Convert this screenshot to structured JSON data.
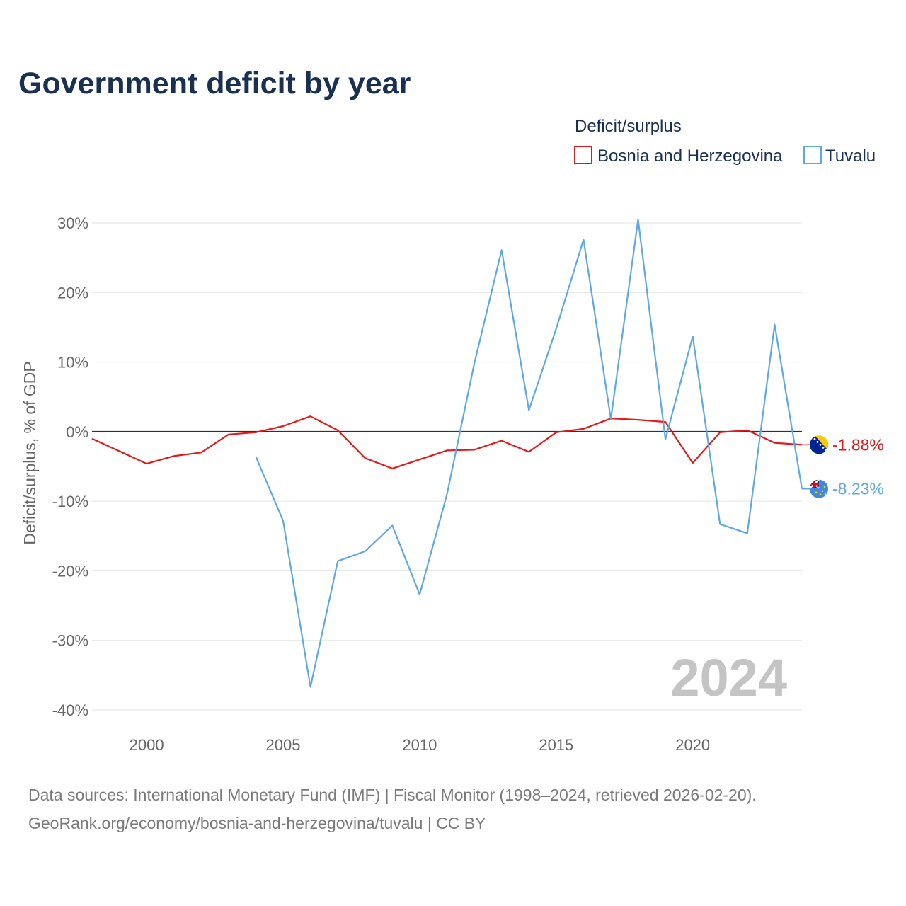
{
  "chart_data": {
    "type": "line",
    "title": "Government deficit by year",
    "legend_title": "Deficit/surplus",
    "ylabel": "Deficit/surplus, % of GDP",
    "xlabel": "",
    "xlim": [
      1998,
      2024
    ],
    "ylim": [
      -40,
      30
    ],
    "x_ticks": [
      2000,
      2005,
      2010,
      2015,
      2020
    ],
    "y_ticks": [
      30,
      20,
      10,
      0,
      -10,
      -20,
      -30,
      -40
    ],
    "y_tick_labels": [
      "30%",
      "20%",
      "10%",
      "0%",
      "-10%",
      "-20%",
      "-30%",
      "-40%"
    ],
    "watermark_year": "2024",
    "series": [
      {
        "name": "Bosnia and Herzegovina",
        "color": "#e31a1c",
        "end_label": "-1.88%",
        "flag": "bosnia-flag",
        "x": [
          1998,
          1999,
          2000,
          2001,
          2002,
          2003,
          2004,
          2005,
          2006,
          2007,
          2008,
          2009,
          2010,
          2011,
          2012,
          2013,
          2014,
          2015,
          2016,
          2017,
          2018,
          2019,
          2020,
          2021,
          2022,
          2023,
          2024
        ],
        "values": [
          -1.0,
          -2.8,
          -4.6,
          -3.5,
          -3.0,
          -0.4,
          -0.1,
          0.8,
          2.2,
          0.2,
          -3.8,
          -5.3,
          -4.0,
          -2.7,
          -2.6,
          -1.3,
          -2.9,
          -0.1,
          0.4,
          1.9,
          1.7,
          1.4,
          -4.5,
          -0.1,
          0.2,
          -1.6,
          -1.88
        ]
      },
      {
        "name": "Tuvalu",
        "color": "#5fa8e6",
        "end_label": "-8.23%",
        "flag": "tuvalu-flag",
        "x": [
          2004,
          2005,
          2006,
          2007,
          2008,
          2009,
          2010,
          2011,
          2012,
          2013,
          2014,
          2015,
          2016,
          2017,
          2018,
          2019,
          2020,
          2021,
          2022,
          2023,
          2024
        ],
        "values": [
          -3.6,
          -12.8,
          -36.7,
          -18.6,
          -17.2,
          -13.5,
          -23.4,
          -9.0,
          9.8,
          26.1,
          3.1,
          14.8,
          27.6,
          1.8,
          30.5,
          -1.1,
          13.7,
          -13.3,
          -14.6,
          15.4,
          -8.23
        ]
      }
    ]
  },
  "source": {
    "line1": "Data sources: International Monetary Fund (IMF) | Fiscal Monitor (1998–2024, retrieved 2026-02-20).",
    "line2": "GeoRank.org/economy/bosnia-and-herzegovina/tuvalu | CC BY"
  }
}
